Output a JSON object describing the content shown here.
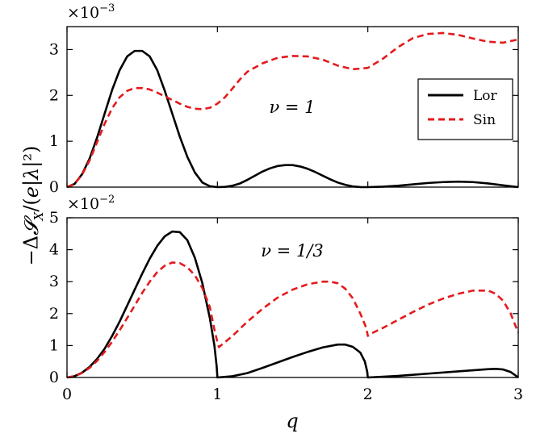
{
  "chart_data": [
    {
      "type": "line",
      "panel": "top",
      "multiplier": "×10",
      "multiplier_exp": "−3",
      "annotation": "ν = 1",
      "xlim": [
        0,
        3
      ],
      "ylim": [
        0,
        3.5
      ],
      "yticks": [
        0,
        1,
        2,
        3
      ],
      "ylabel": "−ΔS_X/(e|λ|²)",
      "legend": {
        "placement": "center-right",
        "entries": [
          "Lor",
          "Sin"
        ]
      },
      "series": [
        {
          "name": "Lor",
          "color": "#000000",
          "style": "solid",
          "x": [
            0,
            0.05,
            0.1,
            0.15,
            0.2,
            0.25,
            0.3,
            0.35,
            0.4,
            0.45,
            0.5,
            0.55,
            0.6,
            0.65,
            0.7,
            0.75,
            0.8,
            0.85,
            0.9,
            0.95,
            1.0,
            1.05,
            1.1,
            1.15,
            1.2,
            1.25,
            1.3,
            1.35,
            1.4,
            1.45,
            1.5,
            1.55,
            1.6,
            1.65,
            1.7,
            1.75,
            1.8,
            1.85,
            1.9,
            1.95,
            2.0,
            2.1,
            2.2,
            2.3,
            2.4,
            2.5,
            2.6,
            2.7,
            2.8,
            2.9,
            3.0
          ],
          "y": [
            0,
            0.07,
            0.28,
            0.62,
            1.08,
            1.6,
            2.12,
            2.55,
            2.85,
            2.97,
            2.97,
            2.85,
            2.55,
            2.1,
            1.6,
            1.1,
            0.66,
            0.32,
            0.1,
            0.02,
            0,
            0.005,
            0.03,
            0.08,
            0.16,
            0.25,
            0.34,
            0.41,
            0.46,
            0.48,
            0.48,
            0.45,
            0.4,
            0.33,
            0.25,
            0.17,
            0.1,
            0.05,
            0.015,
            0.002,
            0,
            0.01,
            0.03,
            0.06,
            0.09,
            0.11,
            0.12,
            0.11,
            0.08,
            0.04,
            0
          ]
        },
        {
          "name": "Sin",
          "color": "#e41a1c",
          "style": "dashed",
          "x": [
            0,
            0.05,
            0.1,
            0.15,
            0.2,
            0.25,
            0.3,
            0.35,
            0.4,
            0.45,
            0.5,
            0.55,
            0.6,
            0.65,
            0.7,
            0.75,
            0.8,
            0.85,
            0.9,
            0.95,
            1.0,
            1.05,
            1.1,
            1.15,
            1.2,
            1.3,
            1.4,
            1.5,
            1.6,
            1.7,
            1.8,
            1.9,
            2.0,
            2.1,
            2.2,
            2.3,
            2.4,
            2.5,
            2.6,
            2.7,
            2.8,
            2.9,
            3.0
          ],
          "y": [
            0,
            0.07,
            0.27,
            0.58,
            0.98,
            1.38,
            1.72,
            1.96,
            2.1,
            2.16,
            2.16,
            2.13,
            2.06,
            1.98,
            1.9,
            1.82,
            1.75,
            1.71,
            1.7,
            1.73,
            1.82,
            1.96,
            2.15,
            2.35,
            2.52,
            2.7,
            2.82,
            2.86,
            2.85,
            2.78,
            2.65,
            2.57,
            2.6,
            2.8,
            3.05,
            3.25,
            3.34,
            3.36,
            3.32,
            3.24,
            3.17,
            3.15,
            3.22
          ]
        }
      ]
    },
    {
      "type": "line",
      "panel": "bottom",
      "multiplier": "×10",
      "multiplier_exp": "−2",
      "annotation": "ν = 1/3",
      "xlim": [
        0,
        3
      ],
      "ylim": [
        0,
        5
      ],
      "xticks": [
        0,
        1,
        2,
        3
      ],
      "yticks": [
        0,
        1,
        2,
        3,
        4,
        5
      ],
      "xlabel": "q",
      "series": [
        {
          "name": "Lor",
          "color": "#000000",
          "style": "solid",
          "x": [
            0,
            0.05,
            0.1,
            0.15,
            0.2,
            0.25,
            0.3,
            0.35,
            0.4,
            0.45,
            0.5,
            0.55,
            0.6,
            0.65,
            0.7,
            0.75,
            0.8,
            0.85,
            0.9,
            0.95,
            0.98,
            0.995,
            1.0,
            1.001,
            1.1,
            1.2,
            1.3,
            1.4,
            1.5,
            1.6,
            1.7,
            1.8,
            1.85,
            1.9,
            1.95,
            1.98,
            1.995,
            2.0,
            2.001,
            2.2,
            2.4,
            2.6,
            2.8,
            2.85,
            2.9,
            2.95,
            2.98,
            3.0
          ],
          "y": [
            0,
            0.04,
            0.15,
            0.33,
            0.58,
            0.9,
            1.3,
            1.75,
            2.25,
            2.75,
            3.25,
            3.72,
            4.12,
            4.42,
            4.57,
            4.55,
            4.3,
            3.75,
            2.95,
            1.85,
            1.0,
            0.35,
            0,
            0,
            0.04,
            0.14,
            0.3,
            0.47,
            0.64,
            0.8,
            0.94,
            1.03,
            1.03,
            0.96,
            0.78,
            0.5,
            0.2,
            0,
            0,
            0.05,
            0.12,
            0.19,
            0.26,
            0.27,
            0.25,
            0.17,
            0.07,
            0
          ]
        },
        {
          "name": "Sin",
          "color": "#e41a1c",
          "style": "dashed",
          "x": [
            0,
            0.05,
            0.1,
            0.15,
            0.2,
            0.25,
            0.3,
            0.35,
            0.4,
            0.45,
            0.5,
            0.55,
            0.6,
            0.65,
            0.7,
            0.75,
            0.8,
            0.85,
            0.9,
            0.95,
            0.98,
            1.0,
            1.01,
            1.1,
            1.2,
            1.3,
            1.4,
            1.5,
            1.6,
            1.7,
            1.75,
            1.8,
            1.85,
            1.9,
            1.95,
            1.99,
            2.0,
            2.01,
            2.1,
            2.2,
            2.3,
            2.4,
            2.5,
            2.6,
            2.7,
            2.8,
            2.85,
            2.9,
            2.95,
            3.0
          ],
          "y": [
            0,
            0.04,
            0.14,
            0.3,
            0.52,
            0.8,
            1.12,
            1.48,
            1.86,
            2.25,
            2.65,
            3.0,
            3.3,
            3.5,
            3.6,
            3.58,
            3.45,
            3.2,
            2.8,
            2.2,
            1.5,
            1.1,
            0.95,
            1.3,
            1.75,
            2.15,
            2.5,
            2.75,
            2.92,
            3.0,
            3.0,
            2.95,
            2.78,
            2.48,
            2.0,
            1.55,
            1.3,
            1.35,
            1.55,
            1.8,
            2.05,
            2.28,
            2.47,
            2.62,
            2.72,
            2.72,
            2.62,
            2.4,
            2.0,
            1.4
          ]
        }
      ]
    }
  ]
}
